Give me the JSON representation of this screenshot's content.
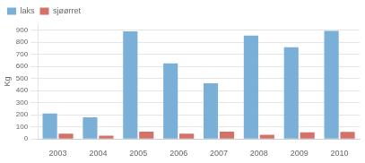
{
  "chart_data": {
    "type": "bar",
    "categories": [
      "2003",
      "2004",
      "2005",
      "2006",
      "2007",
      "2008",
      "2009",
      "2010"
    ],
    "series": [
      {
        "name": "laks",
        "color": "#7ab0d8",
        "values": [
          210,
          180,
          890,
          625,
          460,
          855,
          760,
          895
        ]
      },
      {
        "name": "sjøørret",
        "color": "#d4726a",
        "values": [
          45,
          28,
          60,
          45,
          60,
          35,
          55,
          58
        ]
      }
    ],
    "ylabel": "Kg",
    "ylim": [
      0,
      950
    ],
    "yticks": [
      0,
      100,
      200,
      300,
      400,
      500,
      600,
      700,
      800,
      900
    ],
    "grid": true,
    "legend": "upper left"
  }
}
